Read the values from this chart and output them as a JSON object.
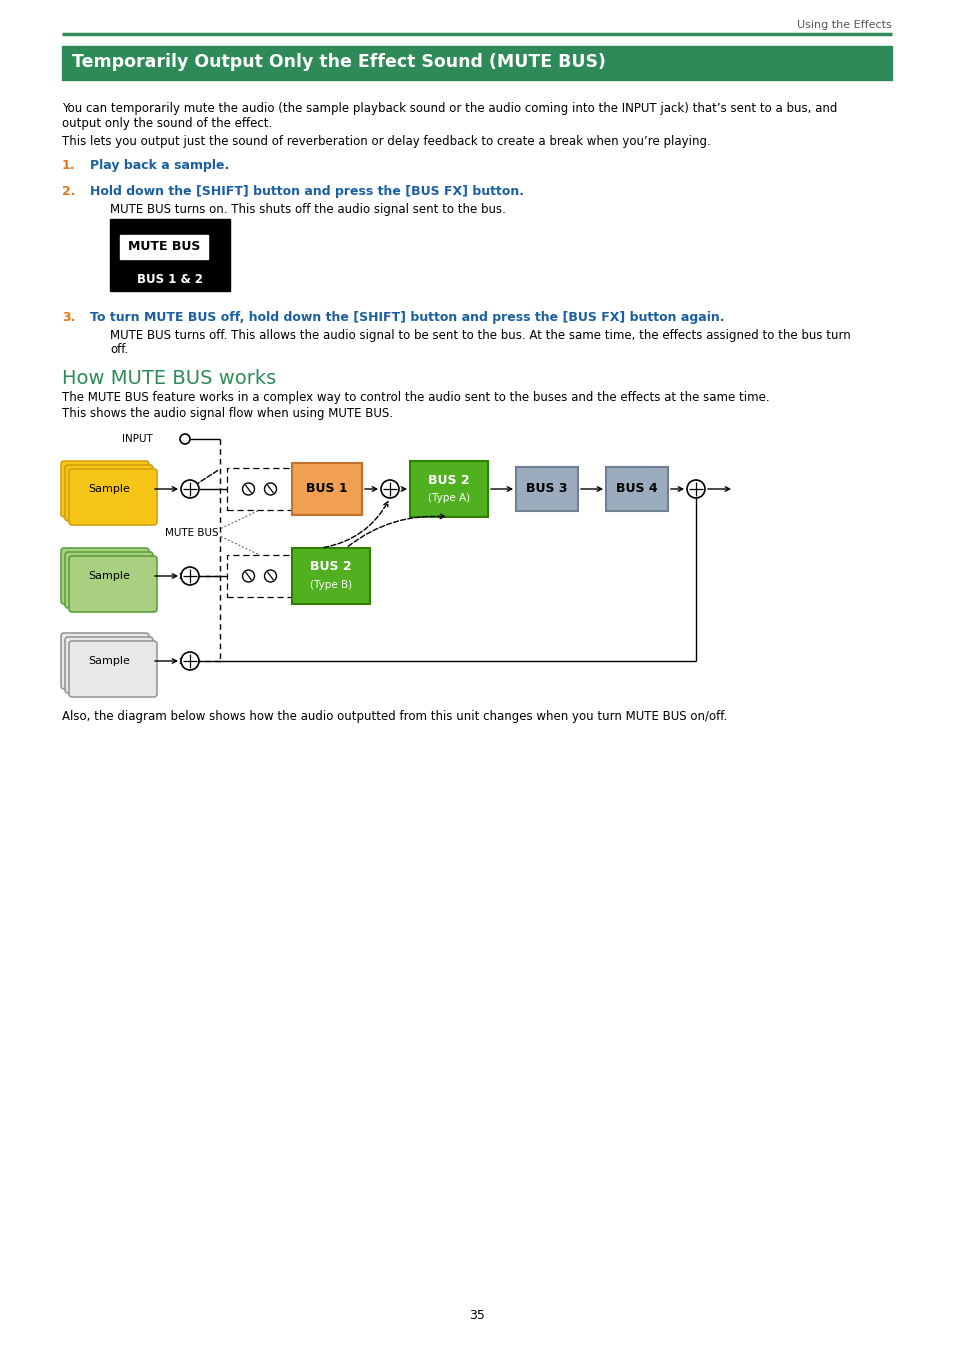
{
  "page_number": "35",
  "header_text": "Using the Effects",
  "section_title": "Temporarily Output Only the Effect Sound (MUTE BUS)",
  "section_title_bg": "#2e8b57",
  "section_title_color": "#ffffff",
  "body_text_1a": "You can temporarily mute the audio (the sample playback sound or the audio coming into the INPUT jack) that’s sent to a bus, and",
  "body_text_1b": "output only the sound of the effect.",
  "body_text_2": "This lets you output just the sound of reverberation or delay feedback to create a break when you’re playing.",
  "step1_num": "1.",
  "step1_text": "Play back a sample.",
  "step2_num": "2.",
  "step2_text": "Hold down the [SHIFT] button and press the [BUS FX] button.",
  "step2_body": "MUTE BUS turns on. This shuts off the audio signal sent to the bus.",
  "step3_num": "3.",
  "step3_text": "To turn MUTE BUS off, hold down the [SHIFT] button and press the [BUS FX] button again.",
  "step3_body_a": "MUTE BUS turns off. This allows the audio signal to be sent to the bus. At the same time, the effects assigned to the bus turn",
  "step3_body_b": "off.",
  "section2_title": "How MUTE BUS works",
  "section2_color": "#2e8b57",
  "section2_text1": "The MUTE BUS feature works in a complex way to control the audio sent to the buses and the effects at the same time.",
  "section2_text2": "This shows the audio signal flow when using MUTE BUS.",
  "footer_text": "Also, the diagram below shows how the audio outputted from this unit changes when you turn MUTE BUS on/off.",
  "step_color": "#e07820",
  "step_text_color": "#1a5fa0",
  "diagram": {
    "sample1_color": "#f5c518",
    "sample1_border": "#d4a010",
    "sample2_color": "#a8d080",
    "sample2_border": "#60a040",
    "sample3_color": "#e8e8e8",
    "sample3_border": "#999999",
    "bus1_color": "#f0a050",
    "bus1_border": "#c07030",
    "bus2a_color": "#50b020",
    "bus2a_border": "#308000",
    "bus2b_color": "#50b020",
    "bus2b_border": "#308000",
    "bus3_color": "#9aacbe",
    "bus3_border": "#708090",
    "bus4_color": "#9aacbe",
    "bus4_border": "#708090"
  }
}
